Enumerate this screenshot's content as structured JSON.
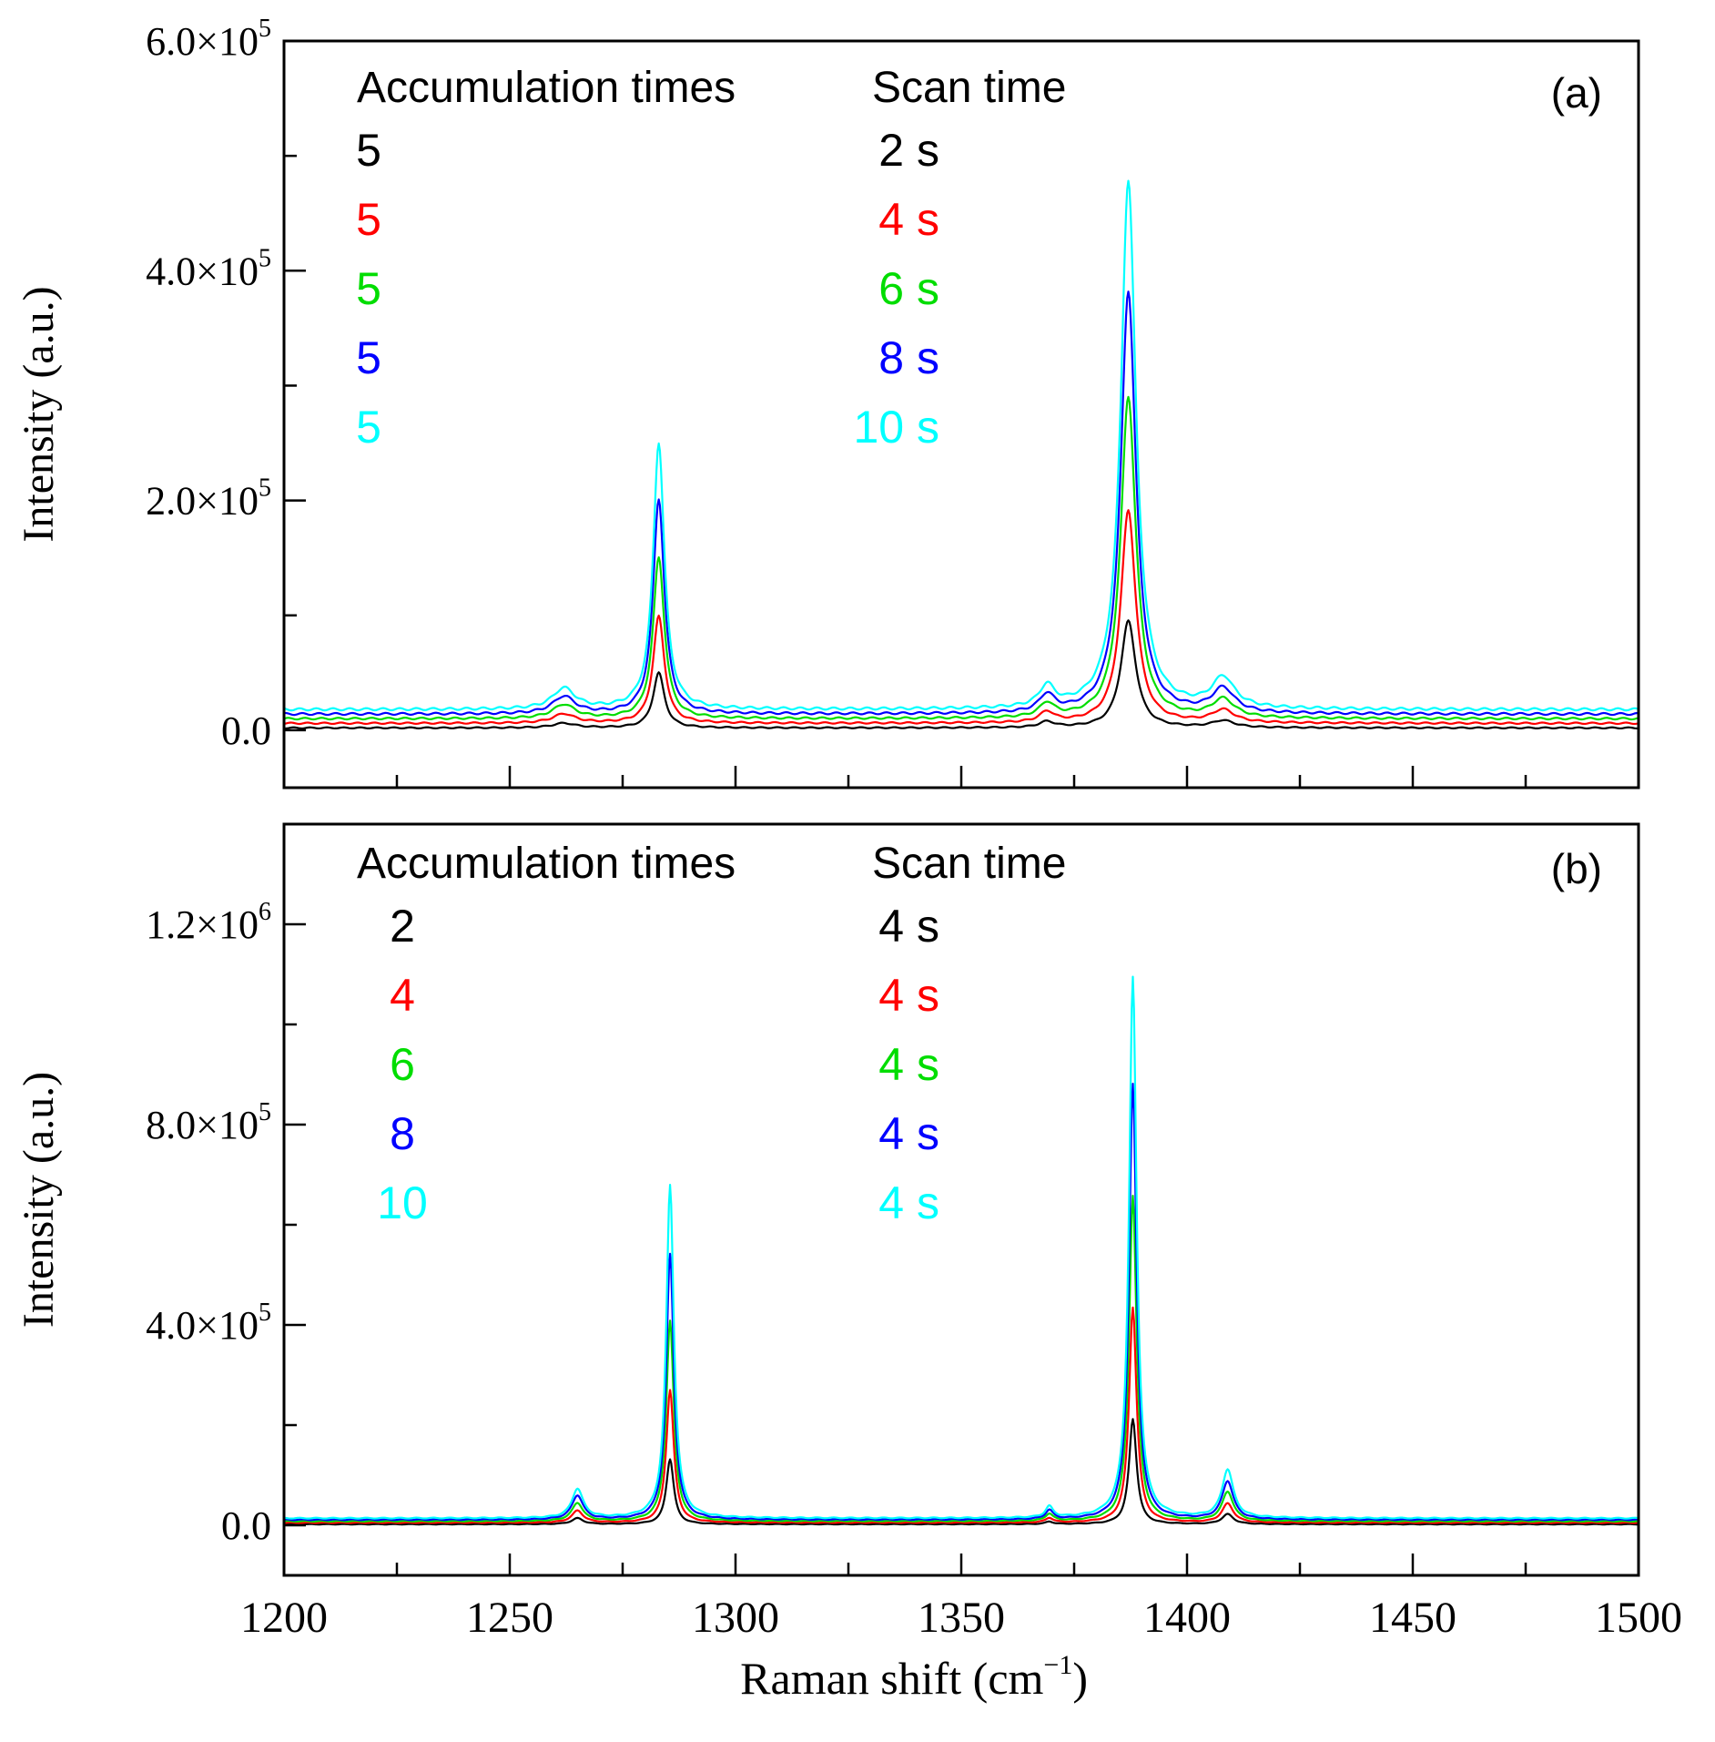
{
  "figure": {
    "xlabel_main": "Raman shift (cm",
    "xlabel_sup": "−1",
    "xlabel_close": ")",
    "xticks": [
      "1200",
      "1250",
      "1300",
      "1350",
      "1400",
      "1450",
      "1500"
    ]
  },
  "chart_data": [
    {
      "type": "line",
      "panel_label": "(a)",
      "ylabel": "Intensity (a.u.)",
      "xlabel": "Raman shift (cm−1)",
      "xlim": [
        1200,
        1500
      ],
      "ylim": [
        -50000,
        600000
      ],
      "ytick_labels": [
        {
          "value": 0,
          "mant": "0.0",
          "exp": ""
        },
        {
          "value": 200000,
          "mant": "2.0",
          "exp": "5"
        },
        {
          "value": 400000,
          "mant": "4.0",
          "exp": "5"
        },
        {
          "value": 600000,
          "mant": "6.0",
          "exp": "5"
        }
      ],
      "y_minor_ticks": [
        100000,
        300000,
        500000
      ],
      "legend_header_left": "Accumulation times",
      "legend_header_right": "Scan time",
      "legend": [
        {
          "accumulation": "5",
          "scan": "2 s",
          "color": "#000000"
        },
        {
          "accumulation": "5",
          "scan": "4 s",
          "color": "#ff0000"
        },
        {
          "accumulation": "5",
          "scan": "6 s",
          "color": "#00dd00"
        },
        {
          "accumulation": "5",
          "scan": "8 s",
          "color": "#0000ff"
        },
        {
          "accumulation": "5",
          "scan": "10 s",
          "color": "#00ffff"
        }
      ],
      "peaks": [
        {
          "center": 1262,
          "width": 3.0
        },
        {
          "center": 1283,
          "width": 1.5
        },
        {
          "center": 1369,
          "width": 2.0
        },
        {
          "center": 1387,
          "width": 2.0
        },
        {
          "center": 1408,
          "width": 3.0
        }
      ],
      "series": [
        {
          "name": "5 × 2 s",
          "color": "#000000",
          "baseline": 2000,
          "heights": [
            4000,
            48000,
            5000,
            93000,
            6000
          ]
        },
        {
          "name": "5 × 4 s",
          "color": "#ff0000",
          "baseline": 6000,
          "heights": [
            8000,
            93000,
            9000,
            185000,
            11000
          ]
        },
        {
          "name": "5 × 6 s",
          "color": "#00dd00",
          "baseline": 10000,
          "heights": [
            12000,
            140000,
            12000,
            280000,
            16000
          ]
        },
        {
          "name": "5 × 8 s",
          "color": "#0000ff",
          "baseline": 14000,
          "heights": [
            15000,
            187000,
            15000,
            368000,
            21000
          ]
        },
        {
          "name": "5 × 10 s",
          "color": "#00ffff",
          "baseline": 18000,
          "heights": [
            18000,
            232000,
            18000,
            460000,
            26000
          ]
        }
      ]
    },
    {
      "type": "line",
      "panel_label": "(b)",
      "ylabel": "Intensity (a.u.)",
      "xlabel": "Raman shift (cm−1)",
      "xlim": [
        1200,
        1500
      ],
      "ylim": [
        -100000,
        1400000
      ],
      "ytick_labels": [
        {
          "value": 0,
          "mant": "0.0",
          "exp": ""
        },
        {
          "value": 400000,
          "mant": "4.0",
          "exp": "5"
        },
        {
          "value": 800000,
          "mant": "8.0",
          "exp": "5"
        },
        {
          "value": 1200000,
          "mant": "1.2",
          "exp": "6"
        }
      ],
      "y_minor_ticks": [
        200000,
        600000,
        1000000
      ],
      "legend_header_left": "Accumulation times",
      "legend_header_right": "Scan time",
      "legend": [
        {
          "accumulation": "2",
          "scan": "4 s",
          "color": "#000000"
        },
        {
          "accumulation": "4",
          "scan": "4 s",
          "color": "#ff0000"
        },
        {
          "accumulation": "6",
          "scan": "4 s",
          "color": "#00dd00"
        },
        {
          "accumulation": "8",
          "scan": "4 s",
          "color": "#0000ff"
        },
        {
          "accumulation": "10",
          "scan": "4 s",
          "color": "#00ffff"
        }
      ],
      "peaks": [
        {
          "center": 1265,
          "width": 1.5
        },
        {
          "center": 1285.5,
          "width": 1.0
        },
        {
          "center": 1369.5,
          "width": 1.0
        },
        {
          "center": 1388,
          "width": 1.0
        },
        {
          "center": 1409,
          "width": 1.5
        }
      ],
      "series": [
        {
          "name": "2 × 4 s",
          "color": "#000000",
          "baseline": 2000,
          "heights": [
            12000,
            130000,
            5000,
            210000,
            20000
          ]
        },
        {
          "name": "4 × 4 s",
          "color": "#ff0000",
          "baseline": 5000,
          "heights": [
            24000,
            265000,
            9000,
            430000,
            38000
          ]
        },
        {
          "name": "6 × 4 s",
          "color": "#00dd00",
          "baseline": 8000,
          "heights": [
            36000,
            400000,
            14000,
            650000,
            58000
          ]
        },
        {
          "name": "8 × 4 s",
          "color": "#0000ff",
          "baseline": 11000,
          "heights": [
            48000,
            530000,
            18000,
            870000,
            76000
          ]
        },
        {
          "name": "10 × 4 s",
          "color": "#00ffff",
          "baseline": 14000,
          "heights": [
            58000,
            665000,
            22000,
            1080000,
            96000
          ]
        }
      ]
    }
  ]
}
